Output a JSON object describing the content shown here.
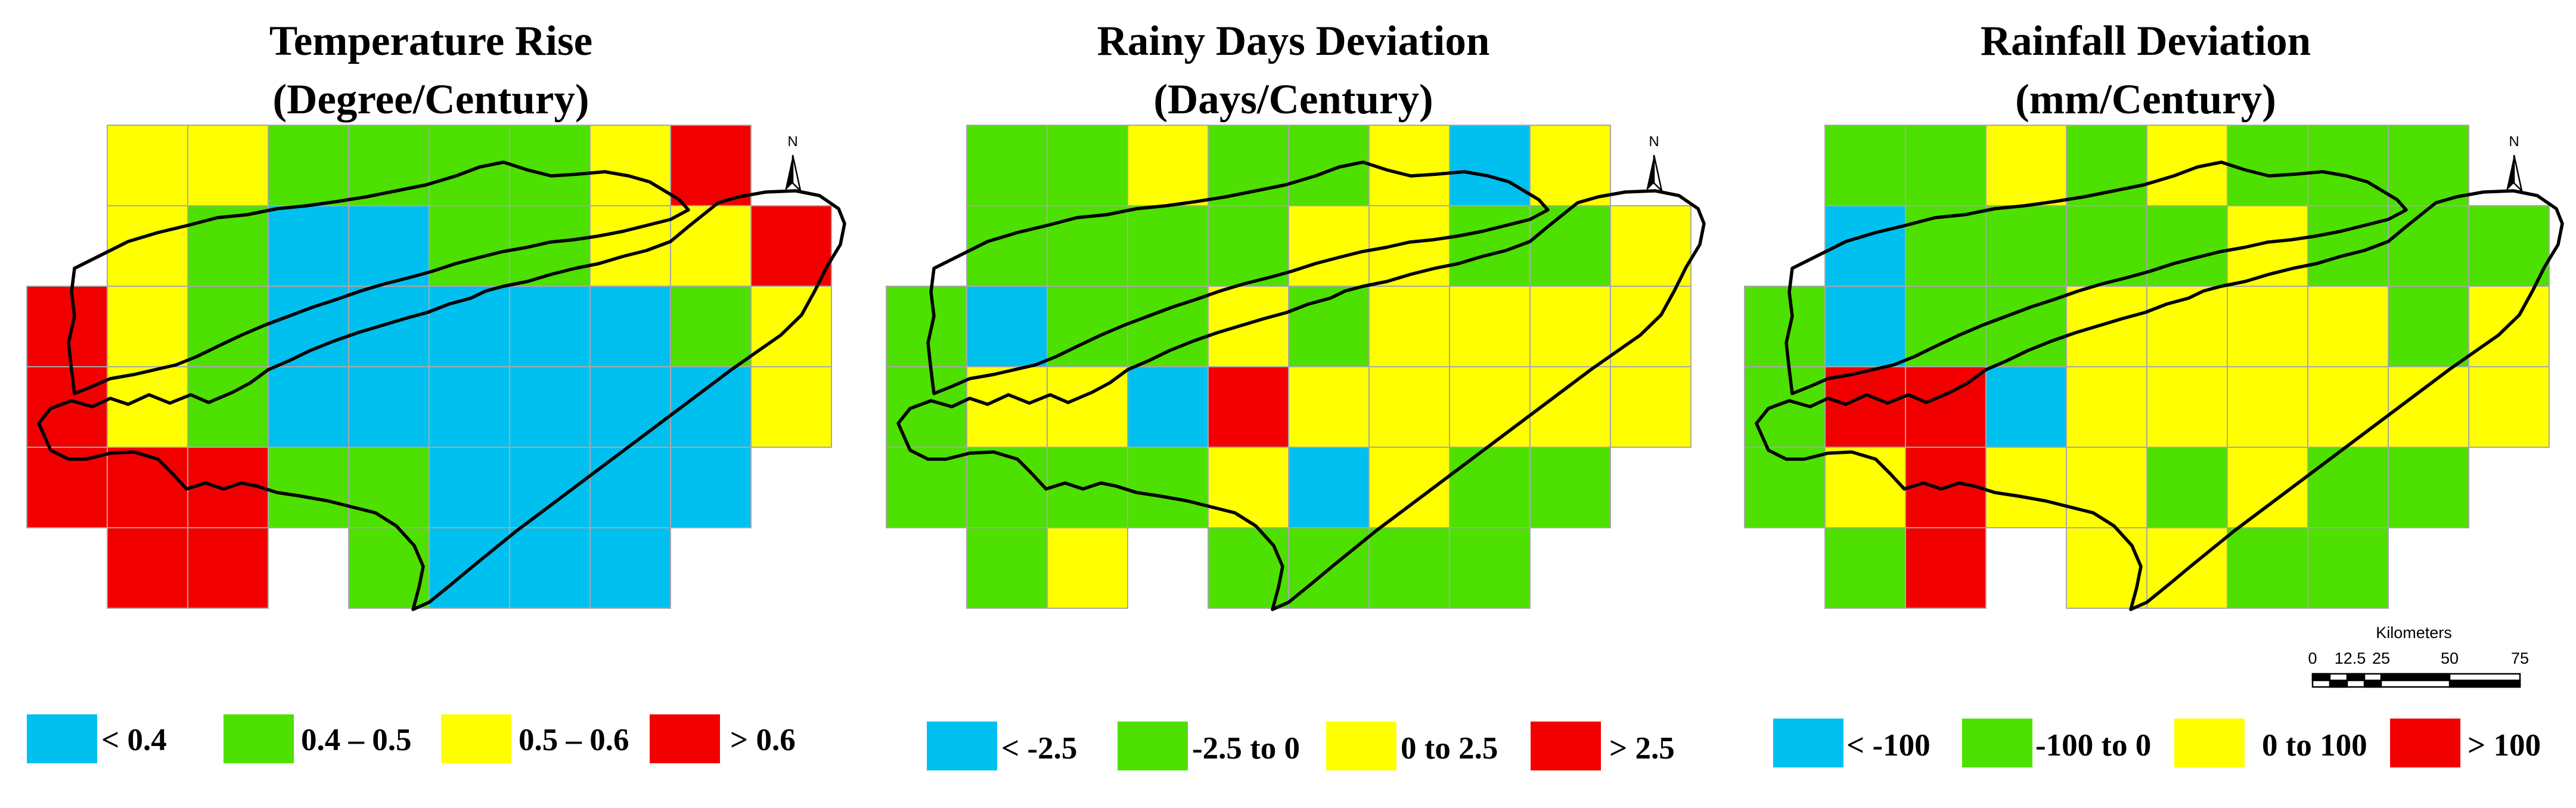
{
  "panels": [
    {
      "id": "temperature",
      "title_line1": "Temperature Rise",
      "title_line2": "(Degree/Century)",
      "legend": [
        {
          "label": "< 0.4",
          "color": "#00c0f0"
        },
        {
          "label": "0.4 – 0.5",
          "color": "#4de000"
        },
        {
          "label": "0.5 – 0.6",
          "color": "#ffff00"
        },
        {
          "label": "> 0.6",
          "color": "#f20000"
        }
      ],
      "grid": [
        [
          -1,
          2,
          2,
          1,
          1,
          1,
          1,
          2,
          3,
          -1
        ],
        [
          -1,
          2,
          1,
          0,
          0,
          1,
          1,
          2,
          2,
          3
        ],
        [
          3,
          2,
          1,
          0,
          0,
          0,
          0,
          0,
          1,
          2
        ],
        [
          3,
          2,
          1,
          0,
          0,
          0,
          0,
          0,
          0,
          2
        ],
        [
          3,
          3,
          3,
          1,
          1,
          0,
          0,
          0,
          0,
          -1
        ],
        [
          -1,
          3,
          3,
          -1,
          1,
          0,
          0,
          0,
          -1,
          -1
        ]
      ]
    },
    {
      "id": "rainy_days",
      "title_line1": "Rainy Days Deviation",
      "title_line2": "(Days/Century)",
      "legend": [
        {
          "label": "< -2.5",
          "color": "#00c0f0"
        },
        {
          "label": "-2.5 to 0",
          "color": "#4de000"
        },
        {
          "label": "0 to 2.5",
          "color": "#ffff00"
        },
        {
          "label": "> 2.5",
          "color": "#f20000"
        }
      ],
      "grid": [
        [
          -1,
          1,
          1,
          2,
          1,
          1,
          2,
          0,
          2,
          -1
        ],
        [
          -1,
          1,
          1,
          1,
          1,
          2,
          2,
          1,
          1,
          2
        ],
        [
          1,
          0,
          1,
          1,
          2,
          1,
          2,
          2,
          2,
          2
        ],
        [
          1,
          2,
          2,
          0,
          3,
          2,
          2,
          2,
          2,
          2
        ],
        [
          1,
          1,
          1,
          1,
          2,
          0,
          2,
          1,
          1,
          -1
        ],
        [
          -1,
          1,
          2,
          -1,
          1,
          1,
          1,
          1,
          -1,
          -1
        ]
      ]
    },
    {
      "id": "rainfall",
      "title_line1": "Rainfall Deviation",
      "title_line2": "(mm/Century)",
      "legend": [
        {
          "label": "< -100",
          "color": "#00c0f0"
        },
        {
          "label": "-100 to 0",
          "color": "#4de000"
        },
        {
          "label": "0 to 100",
          "color": "#ffff00"
        },
        {
          "label": "> 100",
          "color": "#f20000"
        }
      ],
      "grid": [
        [
          -1,
          1,
          1,
          2,
          1,
          2,
          1,
          1,
          1,
          -1
        ],
        [
          -1,
          0,
          1,
          1,
          1,
          1,
          2,
          1,
          1,
          1
        ],
        [
          1,
          0,
          1,
          1,
          2,
          2,
          2,
          2,
          1,
          2
        ],
        [
          1,
          3,
          3,
          0,
          2,
          2,
          2,
          2,
          2,
          2
        ],
        [
          1,
          2,
          3,
          2,
          2,
          1,
          2,
          1,
          1,
          -1
        ],
        [
          -1,
          1,
          3,
          -1,
          2,
          2,
          1,
          1,
          -1,
          -1
        ]
      ]
    }
  ],
  "north_arrow_label": "N",
  "scale_bar": {
    "title": "Kilometers",
    "ticks": [
      "0",
      "12.5",
      "25",
      "50",
      "75"
    ]
  },
  "colors": {
    "cell_border": "#a8a8a8",
    "basin_outline": "#000000"
  }
}
